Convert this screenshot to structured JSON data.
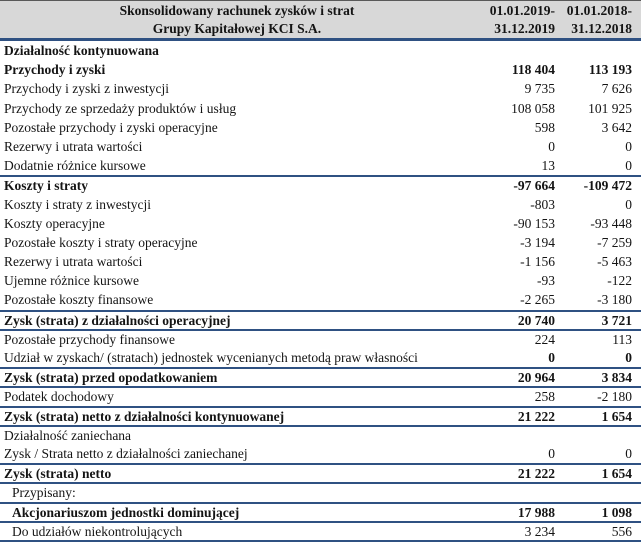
{
  "colors": {
    "accent_line": "#2f5182",
    "header_bg": "#d8d8d8"
  },
  "header": {
    "title_line1": "Skonsolidowany rachunek zysków i strat",
    "title_line2": "Grupy Kapitałowej KCI S.A.",
    "col1_line1": "01.01.2019-",
    "col1_line2": "31.12.2019",
    "col2_line1": "01.01.2018-",
    "col2_line2": "31.12.2018"
  },
  "rows": [
    {
      "label": "Działalność kontynuowana",
      "v2019": "",
      "v2018": "",
      "bold": true
    },
    {
      "label": "Przychody i zyski",
      "v2019": "118 404",
      "v2018": "113 193",
      "bold": true
    },
    {
      "label": "Przychody i zyski z inwestycji",
      "v2019": "9 735",
      "v2018": "7 626"
    },
    {
      "label": "Przychody ze sprzedaży produktów i usług",
      "v2019": "108 058",
      "v2018": "101 925"
    },
    {
      "label": "Pozostałe przychody i zyski operacyjne",
      "v2019": "598",
      "v2018": "3 642"
    },
    {
      "label": "Rezerwy i utrata wartości",
      "v2019": "0",
      "v2018": "0"
    },
    {
      "label": "Dodatnie różnice kursowe",
      "v2019": "13",
      "v2018": "0"
    },
    {
      "label": "Koszty i straty",
      "v2019": "-97 664",
      "v2018": "-109 472",
      "bold": true,
      "sep": true
    },
    {
      "label": "Koszty i straty z inwestycji",
      "v2019": "-803",
      "v2018": "0"
    },
    {
      "label": "Koszty operacyjne",
      "v2019": "-90 153",
      "v2018": "-93 448"
    },
    {
      "label": "Pozostałe koszty i straty operacyjne",
      "v2019": "-3 194",
      "v2018": "-7 259"
    },
    {
      "label": "Rezerwy i utrata wartości",
      "v2019": "-1 156",
      "v2018": "-5 463"
    },
    {
      "label": "Ujemne różnice kursowe",
      "v2019": "-93",
      "v2018": "-122"
    },
    {
      "label": "Pozostałe koszty finansowe",
      "v2019": "-2 265",
      "v2018": "-3 180"
    },
    {
      "label": "Zysk (strata) z działalności operacyjnej",
      "v2019": "20 740",
      "v2018": "3 721",
      "bold": true,
      "sep": true
    },
    {
      "label": "Pozostałe przychody finansowe",
      "v2019": "224",
      "v2018": "113",
      "sep": true
    },
    {
      "label": "Udział w zyskach/ (stratach) jednostek wycenianych metodą praw własności",
      "v2019": "0",
      "v2018": "0",
      "boldValues": true
    },
    {
      "label": "Zysk (strata) przed opodatkowaniem",
      "v2019": "20 964",
      "v2018": "3 834",
      "bold": true,
      "sep": true
    },
    {
      "label": "Podatek dochodowy",
      "v2019": "258",
      "v2018": "-2 180",
      "sep": true
    },
    {
      "label": "Zysk (strata) netto z działalności kontynuowanej",
      "v2019": "21 222",
      "v2018": "1 654",
      "bold": true,
      "sep": true
    },
    {
      "label": "Działalność zaniechana",
      "v2019": "",
      "v2018": "",
      "sep": true
    },
    {
      "label": "Zysk / Strata netto z działalności zaniechanej",
      "v2019": "0",
      "v2018": "0"
    },
    {
      "label": "Zysk (strata) netto",
      "v2019": "21 222",
      "v2018": "1 654",
      "bold": true,
      "sep": true
    },
    {
      "label": "Przypisany:",
      "v2019": "",
      "v2018": "",
      "sep": true,
      "indent": true
    },
    {
      "label": "Akcjonariuszom jednostki dominującej",
      "v2019": "17 988",
      "v2018": "1 098",
      "bold": true,
      "sep": true,
      "indent": true
    },
    {
      "label": "Do udziałów niekontrolujących",
      "v2019": "3 234",
      "v2018": "556",
      "sep": true,
      "indent": true
    }
  ]
}
